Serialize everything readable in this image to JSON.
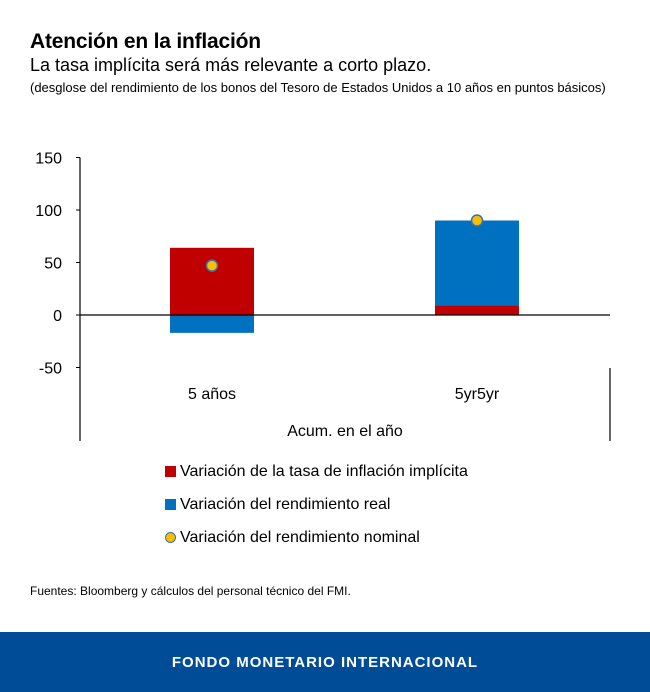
{
  "title": "Atención en la inflación",
  "subtitle": "La tasa implícita será más relevante a corto plazo.",
  "note": "(desglose del rendimiento de los bonos del Tesoro de Estados Unidos a 10 años en puntos básicos)",
  "source": "Fuentes: Bloomberg y cálculos del personal técnico del FMI.",
  "footer": "FONDO MONETARIO INTERNACIONAL",
  "colors": {
    "implied": "#c00000",
    "real": "#0070c0",
    "nominal": "#f5c000",
    "footer": "#004c97"
  },
  "chart_data": {
    "type": "bar",
    "stacked": true,
    "categories": [
      "5 años",
      "5yr5yr"
    ],
    "xlabel": "Acum. en el año",
    "ylabel": "",
    "ylim": [
      -50,
      150
    ],
    "yticks": [
      -50,
      0,
      50,
      100,
      150
    ],
    "ytick_labels": [
      "-50",
      "0",
      "50",
      "100",
      "150"
    ],
    "grid": false,
    "series": [
      {
        "name": "Variación de la tasa de inflación implícita",
        "values": [
          64,
          9
        ]
      },
      {
        "name": "Variación del rendimiento real",
        "values": [
          -17,
          81
        ]
      },
      {
        "name": "Variación del rendimiento nominal",
        "kind": "point",
        "values": [
          47,
          90
        ]
      }
    ]
  }
}
